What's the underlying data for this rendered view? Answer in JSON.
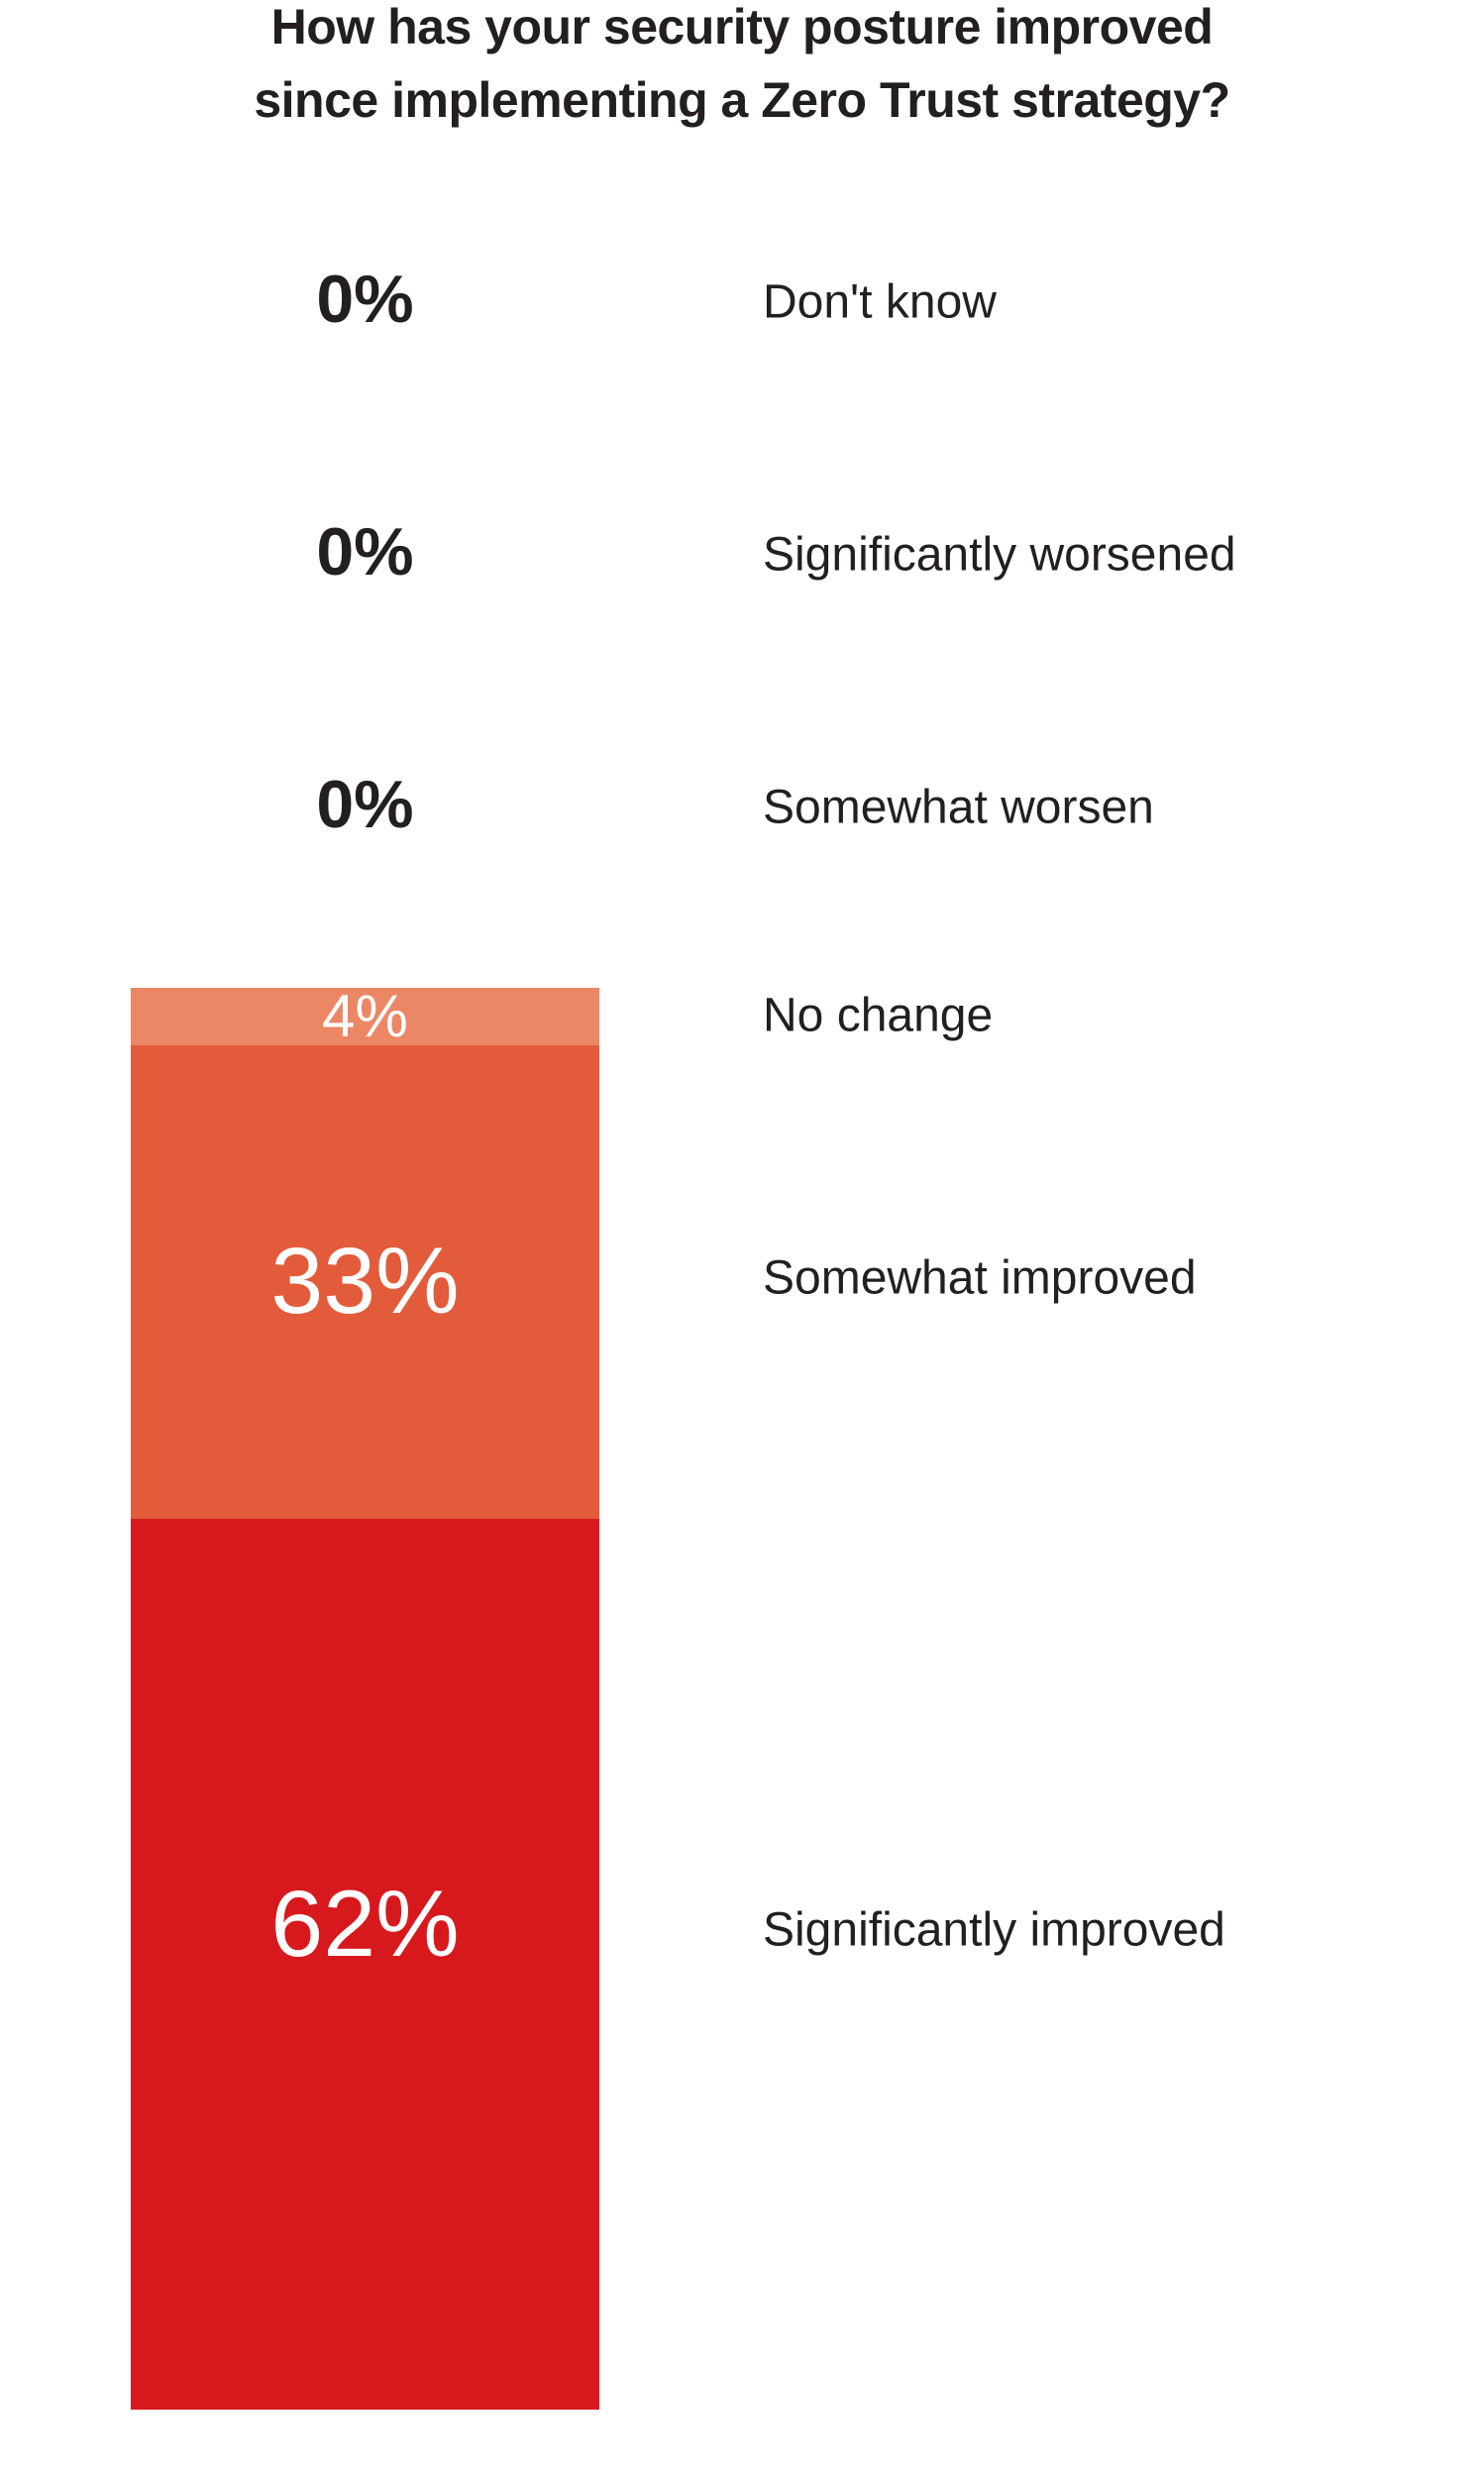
{
  "chart_data": {
    "type": "bar",
    "orientation": "vertical-stacked",
    "title": "How has your security posture improved since implementing a Zero Trust strategy?",
    "title_lines": [
      "How has your security posture improved",
      "since implementing a Zero Trust strategy?"
    ],
    "categories": [
      "Don't know",
      "Significantly worsened",
      "Somewhat worsen",
      "No change",
      "Somewhat improved",
      "Significantly improved"
    ],
    "values": [
      0,
      0,
      0,
      4,
      33,
      62
    ],
    "value_labels": [
      "0%",
      "0%",
      "0%",
      "4%",
      "33%",
      "62%"
    ],
    "colors": [
      "none",
      "none",
      "none",
      "#EC8766",
      "#E25C3C",
      "#D7191E"
    ],
    "value_text_colors": [
      "#231f20",
      "#231f20",
      "#231f20",
      "#ffffff",
      "#ffffff",
      "#ffffff"
    ],
    "ylim": [
      0,
      100
    ],
    "grid": false,
    "legend": "none",
    "xlabel": "",
    "ylabel": ""
  }
}
